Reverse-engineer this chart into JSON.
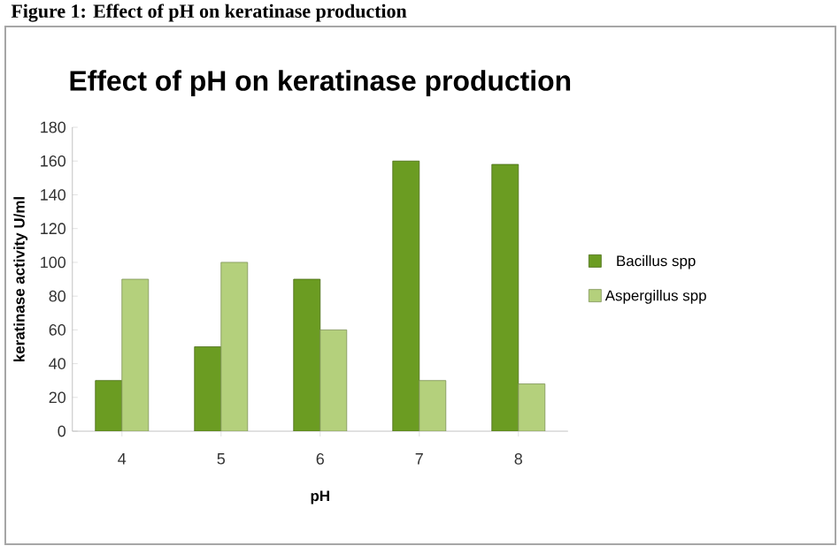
{
  "chart_data": {
    "type": "bar",
    "title": "Effect of pH on keratinase production",
    "annotations": [
      "Figure 1: Effect of pH on keratinase production"
    ],
    "xlabel": "pH",
    "ylabel": "keratinase activity U/ml",
    "categories": [
      "4",
      "5",
      "6",
      "7",
      "8"
    ],
    "series": [
      {
        "name": "Bacillus spp",
        "color": "#6b9c22",
        "values": [
          30,
          50,
          90,
          160,
          158
        ]
      },
      {
        "name": "Aspergillus spp",
        "color": "#b4d07c",
        "values": [
          90,
          100,
          60,
          30,
          28
        ]
      }
    ],
    "ylim": [
      0,
      180
    ],
    "yticks": [
      0,
      20,
      40,
      60,
      80,
      100,
      120,
      140,
      160,
      180
    ],
    "grid": false,
    "legend": "right"
  }
}
